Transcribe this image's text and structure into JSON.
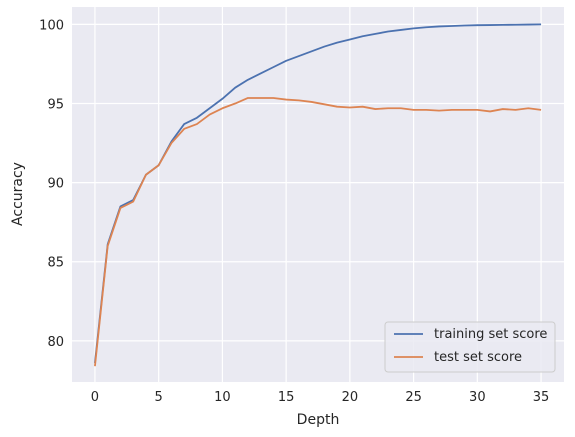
{
  "chart_data": {
    "type": "line",
    "title": "",
    "xlabel": "Depth",
    "ylabel": "Accuracy",
    "xlim": [
      -1.8,
      36.8
    ],
    "ylim": [
      77.4,
      101.1
    ],
    "xticks": [
      0,
      5,
      10,
      15,
      20,
      25,
      30,
      35
    ],
    "yticks": [
      80,
      85,
      90,
      95,
      100
    ],
    "grid": true,
    "legend_position": "lower-right",
    "x": [
      0,
      1,
      2,
      3,
      4,
      5,
      6,
      7,
      8,
      9,
      10,
      11,
      12,
      13,
      14,
      15,
      16,
      17,
      18,
      19,
      20,
      21,
      22,
      23,
      24,
      25,
      26,
      27,
      28,
      29,
      30,
      31,
      32,
      33,
      34,
      35
    ],
    "series": [
      {
        "name": "training set score",
        "color": "#4c72b0",
        "values": [
          78.6,
          86.1,
          88.5,
          88.9,
          90.5,
          91.1,
          92.6,
          93.7,
          94.1,
          94.7,
          95.3,
          96.0,
          96.5,
          96.9,
          97.3,
          97.7,
          98.0,
          98.3,
          98.6,
          98.85,
          99.05,
          99.25,
          99.4,
          99.55,
          99.65,
          99.75,
          99.82,
          99.87,
          99.9,
          99.93,
          99.95,
          99.96,
          99.97,
          99.98,
          99.99,
          100.0
        ]
      },
      {
        "name": "test set score",
        "color": "#dd8452",
        "values": [
          78.4,
          86.0,
          88.4,
          88.8,
          90.5,
          91.1,
          92.5,
          93.4,
          93.7,
          94.3,
          94.7,
          95.0,
          95.35,
          95.35,
          95.35,
          95.25,
          95.2,
          95.1,
          94.95,
          94.8,
          94.75,
          94.8,
          94.65,
          94.7,
          94.7,
          94.6,
          94.6,
          94.55,
          94.6,
          94.6,
          94.6,
          94.5,
          94.65,
          94.6,
          94.7,
          94.6
        ]
      }
    ]
  }
}
